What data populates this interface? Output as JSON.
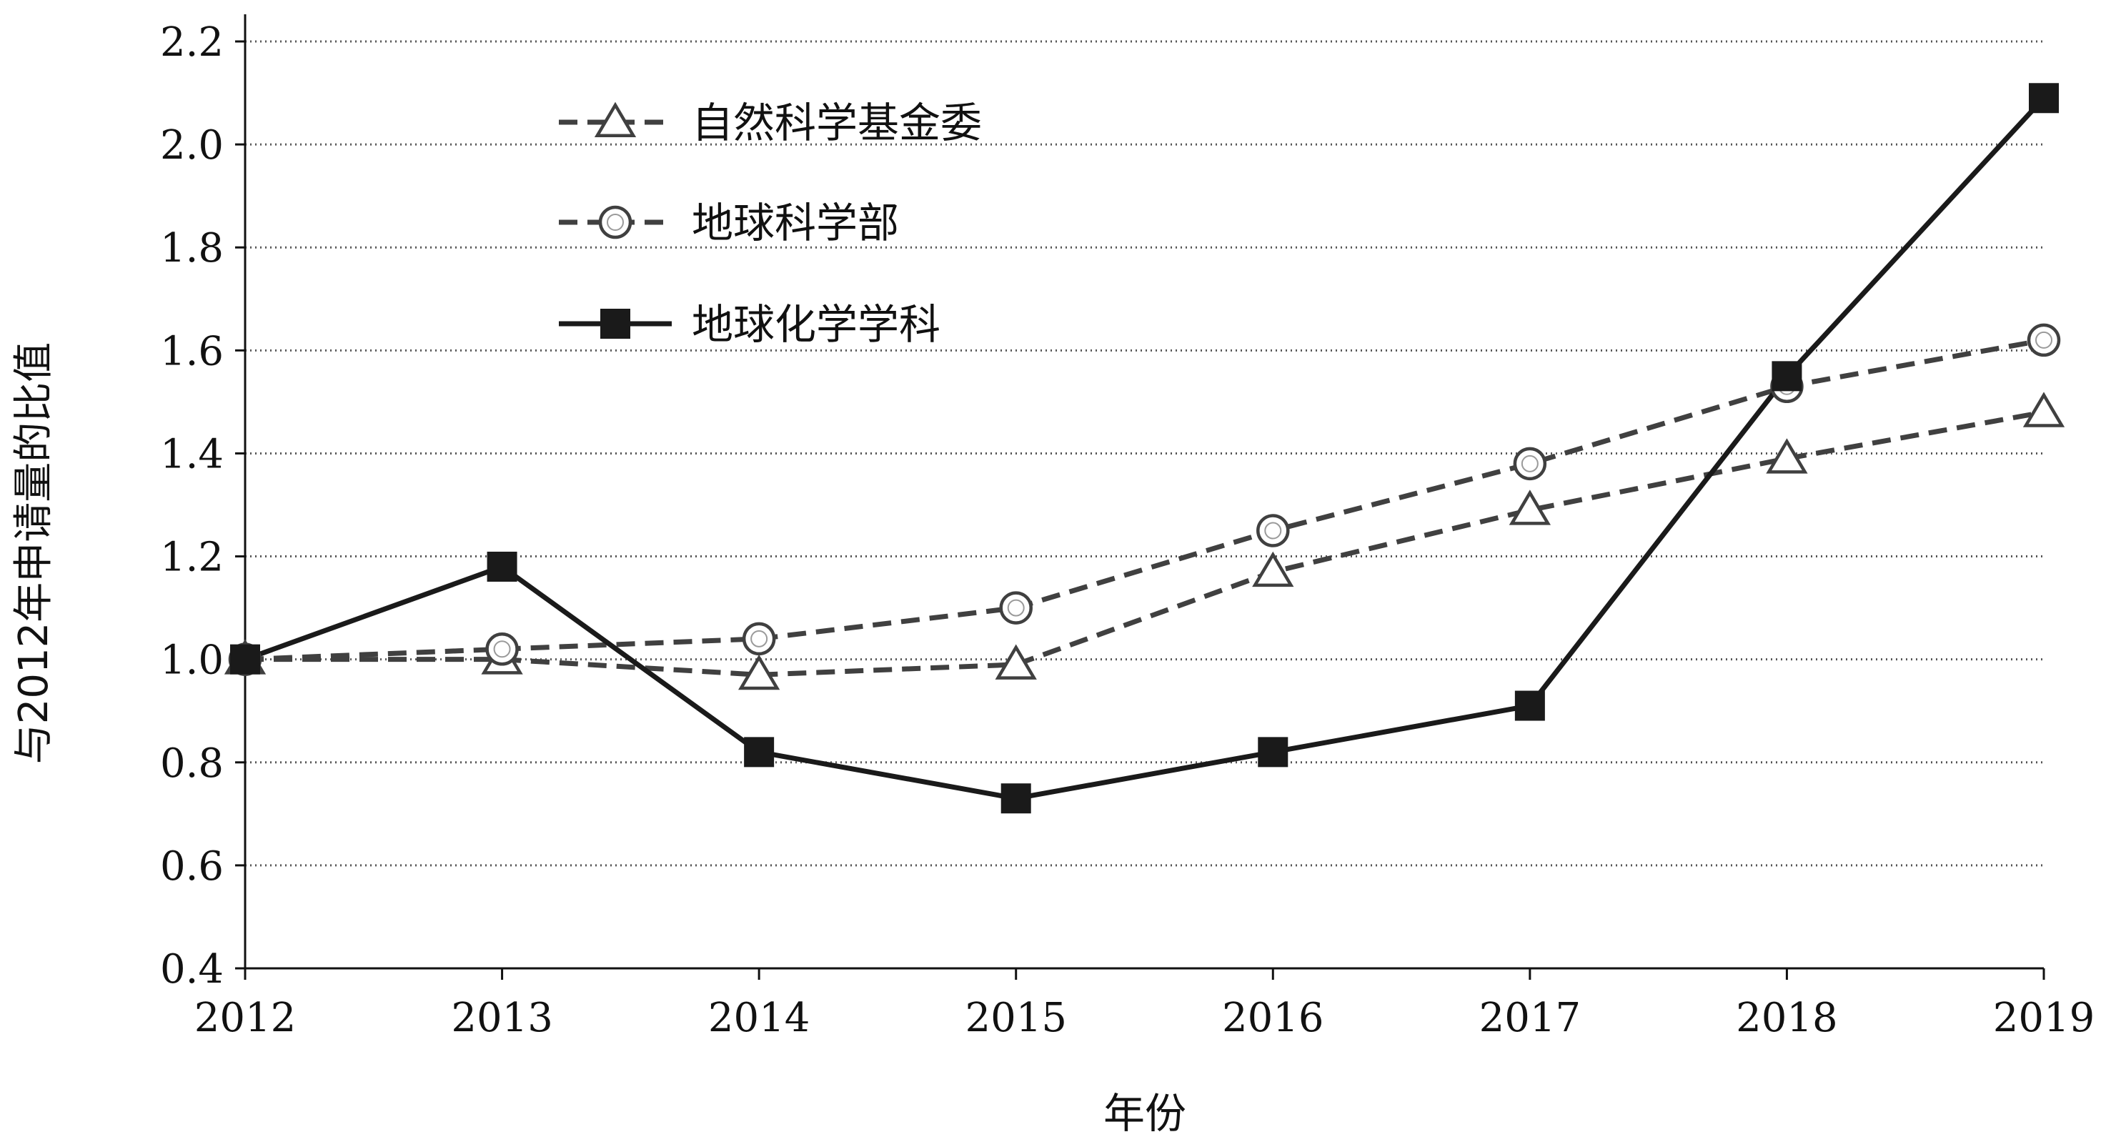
{
  "chart_data": {
    "type": "line",
    "title": "",
    "xlabel": "年份",
    "ylabel": "与2012年申请量的比值",
    "categories": [
      "2012",
      "2013",
      "2014",
      "2015",
      "2016",
      "2017",
      "2018",
      "2019"
    ],
    "ylim": [
      0.4,
      2.2
    ],
    "yticks": [
      "0.4",
      "0.6",
      "0.8",
      "1.0",
      "1.2",
      "1.4",
      "1.6",
      "1.8",
      "2.0",
      "2.2"
    ],
    "grid": "horizontal-dotted",
    "legend_position": "top-left",
    "series": [
      {
        "name": "自然科学基金委",
        "marker": "triangle-open",
        "line": "dashed",
        "color": "#404040",
        "values": [
          1.0,
          1.0,
          0.97,
          0.99,
          1.17,
          1.29,
          1.39,
          1.48
        ]
      },
      {
        "name": "地球科学部",
        "marker": "circle-open",
        "line": "dashed",
        "color": "#404040",
        "values": [
          1.0,
          1.02,
          1.04,
          1.1,
          1.25,
          1.38,
          1.53,
          1.62
        ]
      },
      {
        "name": "地球化学学科",
        "marker": "square-filled",
        "line": "solid",
        "color": "#1a1a1a",
        "values": [
          1.0,
          1.18,
          0.82,
          0.73,
          0.82,
          0.91,
          1.55,
          2.09
        ]
      }
    ]
  }
}
